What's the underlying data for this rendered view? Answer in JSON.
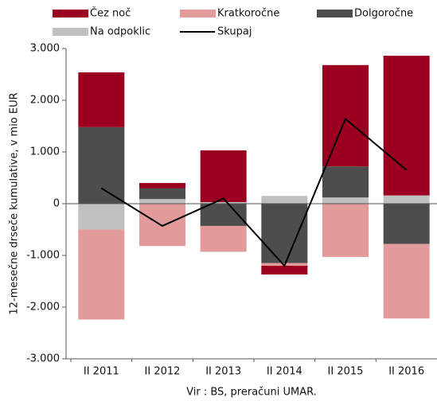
{
  "chart_data": {
    "type": "bar",
    "y_axis_label": "12-mesečne drseče kumulative, v mio EUR",
    "source": "Vir : BS, preračuni UMAR.",
    "categories": [
      "II 2011",
      "II 2012",
      "II 2013",
      "II 2014",
      "II 2015",
      "II 2016"
    ],
    "series": [
      {
        "name": "Čez noč",
        "color": "#9b0020",
        "type": "bar",
        "values": [
          1060,
          100,
          1000,
          -170,
          1960,
          2700
        ]
      },
      {
        "name": "Kratkoročne",
        "color": "#e39a9a",
        "type": "bar",
        "values": [
          -1740,
          -820,
          -500,
          -50,
          -1030,
          -1440
        ]
      },
      {
        "name": "Dolgoročne",
        "color": "#4d4d4d",
        "type": "bar",
        "values": [
          1480,
          210,
          -430,
          -1150,
          600,
          -780
        ]
      },
      {
        "name": "Na odpoklic",
        "color": "#c0c0c0",
        "type": "bar",
        "values": [
          -500,
          90,
          30,
          150,
          120,
          160
        ]
      },
      {
        "name": "Skupaj",
        "color": "#000000",
        "type": "line",
        "values": [
          300,
          -430,
          100,
          -1200,
          1640,
          650
        ]
      }
    ],
    "ylim": [
      -3000,
      3000
    ],
    "yticks": [
      {
        "value": 3000,
        "label": "3.000"
      },
      {
        "value": 2000,
        "label": "2.000"
      },
      {
        "value": 1000,
        "label": "1.000"
      },
      0,
      {
        "value": -1000,
        "label": "-1.000"
      },
      {
        "value": -2000,
        "label": "-2.000"
      },
      {
        "value": -3000,
        "label": "-3.000"
      }
    ],
    "grid": false,
    "legend": "top"
  }
}
